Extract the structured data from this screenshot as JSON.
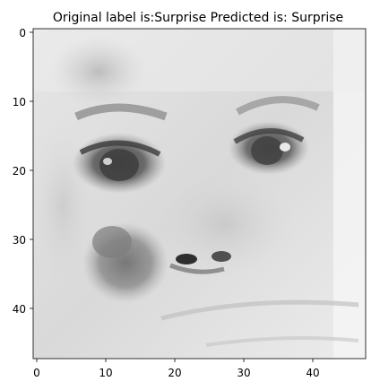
{
  "figure": {
    "title": "Original label is:Surprise Predicted is: Surprise",
    "image_description": "grayscale 48x48 face crop",
    "colormap": "gray",
    "xticks": [
      "0",
      "10",
      "20",
      "30",
      "40"
    ],
    "yticks": [
      "0",
      "10",
      "20",
      "30",
      "40"
    ]
  },
  "colors": {
    "frame": "#000000",
    "background": "#ffffff"
  }
}
